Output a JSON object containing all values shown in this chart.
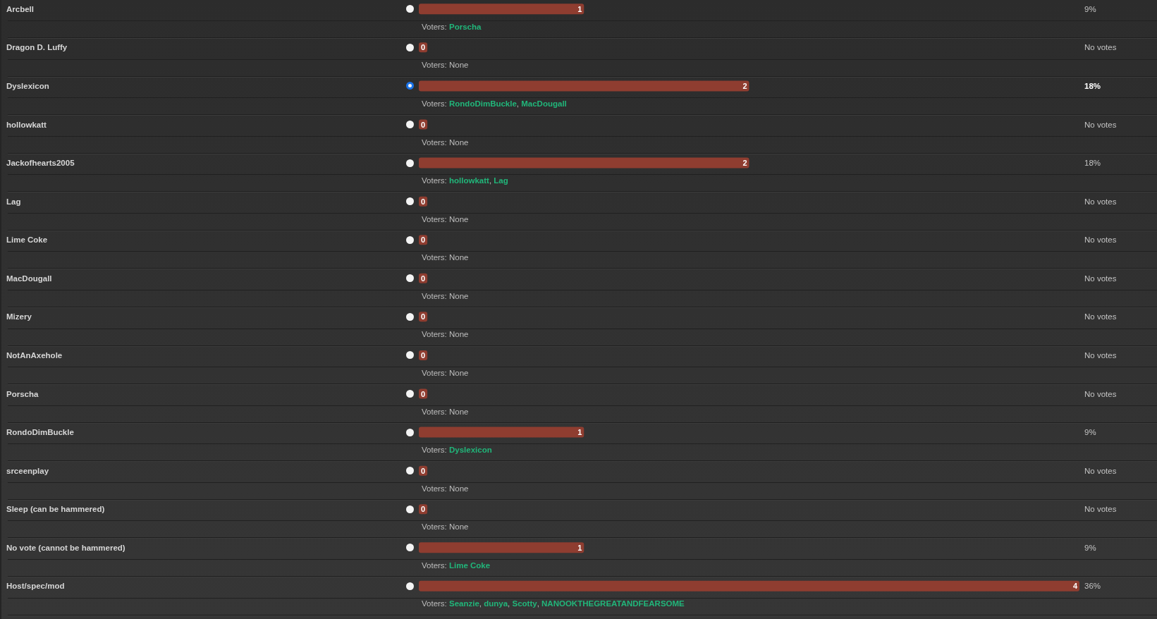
{
  "chart_data": {
    "type": "bar",
    "orientation": "horizontal",
    "categories": [
      "Arcbell",
      "Dragon D. Luffy",
      "Dyslexicon",
      "hollowkatt",
      "Jackofhearts2005",
      "Lag",
      "Lime Coke",
      "MacDougall",
      "Mizery",
      "NotAnAxehole",
      "Porscha",
      "RondoDimBuckle",
      "srceenplay",
      "Sleep (can be hammered)",
      "No vote (cannot be hammered)",
      "Host/spec/mod"
    ],
    "values": [
      1,
      0,
      2,
      0,
      2,
      0,
      0,
      0,
      0,
      0,
      0,
      1,
      0,
      0,
      1,
      4
    ],
    "color": "#8f3d30",
    "data_labels": true,
    "tick_labels": "y",
    "annotations": [
      "9%",
      "Voters: Porscha",
      "No votes",
      "Voters: None",
      "18%",
      "Voters: RondoDimBuckle, MacDougall",
      "No votes",
      "Voters: None",
      "18%",
      "Voters: hollowkatt, Lag",
      "No votes",
      "Voters: None",
      "No votes",
      "Voters: None",
      "No votes",
      "Voters: None",
      "No votes",
      "Voters: None",
      "No votes",
      "Voters: None",
      "No votes",
      "Voters: None",
      "9%",
      "Voters: Dyslexicon",
      "No votes",
      "Voters: None",
      "No votes",
      "Voters: None",
      "9%",
      "Voters: Lime Coke",
      "36%",
      "Voters: Seanzie, dunya, Scotty, NANOOKTHEGREATANDFEARSOME"
    ]
  }
}
